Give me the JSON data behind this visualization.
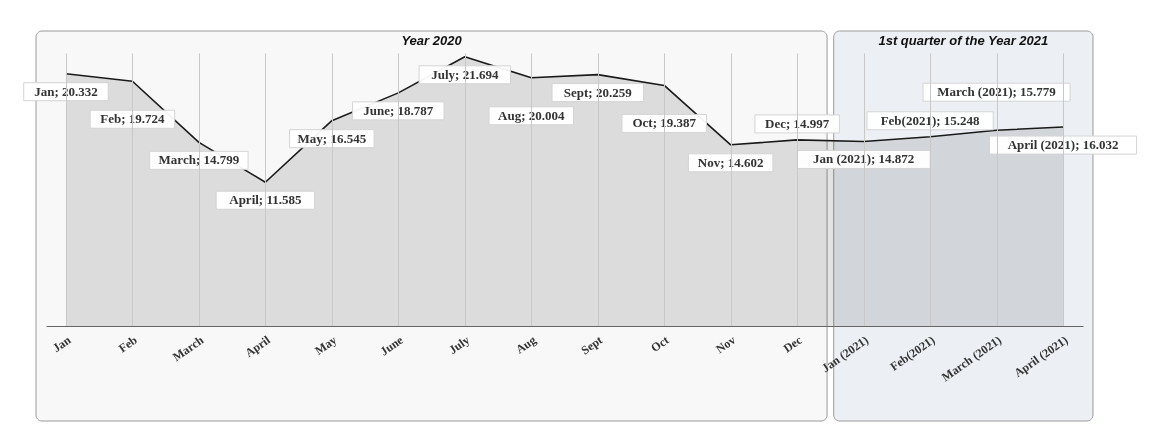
{
  "chart_data": {
    "type": "area",
    "categories": [
      "Jan",
      "Feb",
      "March",
      "April",
      "May",
      "June",
      "July",
      "Aug",
      "Sept",
      "Oct",
      "Nov",
      "Dec",
      "Jan (2021)",
      "Feb(2021)",
      "March (2021)",
      "April (2021)"
    ],
    "series": [
      {
        "color": "#1a1a1a",
        "values": [
          20.332,
          19.724,
          14.799,
          11.585,
          16.545,
          18.787,
          21.694,
          20.004,
          20.259,
          19.387,
          14.602,
          14.997,
          14.872,
          15.248,
          15.779,
          16.032
        ],
        "value_labels": [
          "Jan; 20.332",
          "Feb; 19.724",
          "March; 14.799",
          "April; 11.585",
          "May; 16.545",
          "June; 18.787",
          "July; 21.694",
          "Aug; 20.004",
          "Sept; 20.259",
          "Oct; 19.387",
          "Nov; 14.602",
          "Dec; 14.997",
          "Jan (2021); 14.872",
          "Feb(2021); 15.248",
          "March (2021); 15.779",
          "April (2021); 16.032"
        ]
      }
    ],
    "bands": [
      {
        "axis": "x",
        "from": "Jan",
        "to": "Dec",
        "label": "Year 2020",
        "color": "#f3f3f3"
      },
      {
        "axis": "x",
        "from": "Jan (2021)",
        "to": "April (2021)",
        "label": "1st quarter of the Year 2021",
        "color": "#dfe6ee"
      }
    ],
    "grid": "x"
  }
}
